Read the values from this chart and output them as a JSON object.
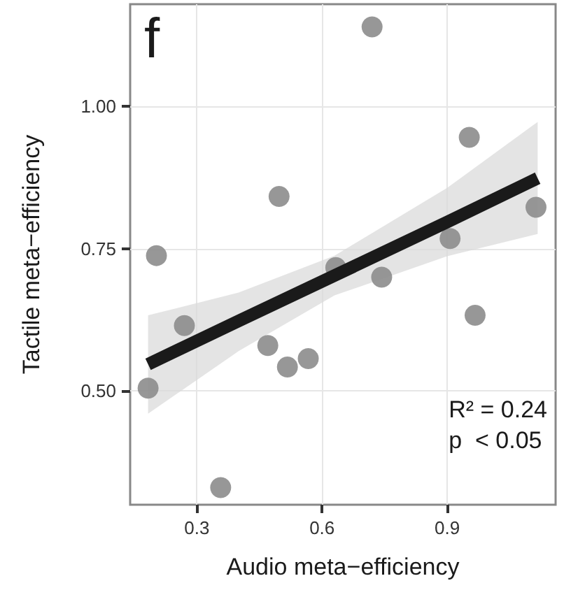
{
  "chart_data": {
    "type": "scatter",
    "xlabel": "Audio meta−efficiency",
    "ylabel": "Tactile meta−efficiency",
    "annotations": [
      "f",
      "R² = 0.24",
      "p  < 0.05"
    ],
    "series": [
      {
        "color": "#8c8c8c",
        "marker": "circle",
        "x": [
          0.72,
          0.953,
          0.497,
          1.113,
          0.203,
          0.907,
          0.633,
          0.743,
          0.27,
          0.47,
          0.517,
          0.567,
          0.967,
          0.183,
          0.357
        ],
        "values": [
          1.14,
          0.946,
          0.842,
          0.823,
          0.738,
          0.768,
          0.717,
          0.7,
          0.615,
          0.58,
          0.542,
          0.557,
          0.633,
          0.505,
          0.33
        ]
      },
      {
        "type": "line",
        "marker": "none",
        "color": "#1a1a1a",
        "x": [
          0.183,
          0.4,
          0.63,
          0.9,
          1.117
        ],
        "values": [
          0.547,
          0.623,
          0.703,
          0.797,
          0.874
        ],
        "lower": [
          0.46,
          0.57,
          0.668,
          0.737,
          0.776
        ],
        "upper": [
          0.633,
          0.673,
          0.738,
          0.857,
          0.973
        ]
      }
    ],
    "xlim": [
      0.14,
      1.16
    ],
    "xticks": [
      0.3,
      0.6,
      0.9
    ],
    "ylim": [
      0.3,
      1.18
    ],
    "yticks": [
      {
        "value": 0.5,
        "label": "0.50"
      },
      0.75,
      {
        "value": 1.0,
        "label": "1.00"
      }
    ],
    "grid": true,
    "line_style": "solid"
  }
}
